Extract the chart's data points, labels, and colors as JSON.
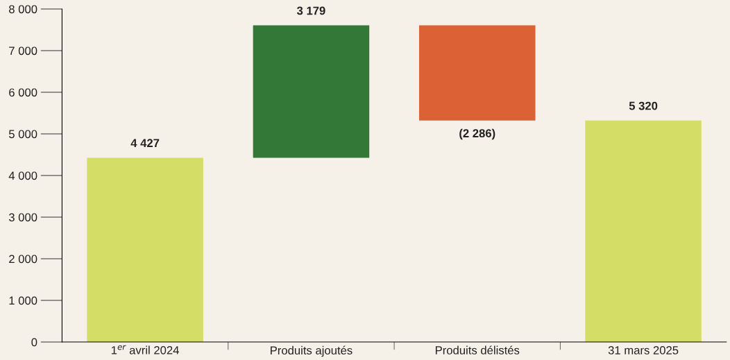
{
  "chart_data": {
    "type": "bar",
    "categories": [
      "1$^{er}$ avril 2024",
      "Produits ajoutés",
      "Produits délistés",
      "31 mars 2025"
    ],
    "values": [
      4427,
      3179,
      -2286,
      5320
    ],
    "base": [
      0,
      4427,
      7606,
      0
    ],
    "colors": [
      "#d4dd66",
      "#347838",
      "#dc6235",
      "#d4dd66"
    ],
    "value_labels": [
      "4 427",
      "3 179",
      "(2 286)",
      "5 320"
    ],
    "ylim": [
      0,
      8000
    ],
    "yticks": [
      {
        "value": 0,
        "label": "0"
      },
      {
        "value": 1000,
        "label": "1 000"
      },
      {
        "value": 2000,
        "label": "2 000"
      },
      {
        "value": 3000,
        "label": "3 000"
      },
      {
        "value": 4000,
        "label": "4 000"
      },
      {
        "value": 5000,
        "label": "5 000"
      },
      {
        "value": 6000,
        "label": "6 000"
      },
      {
        "value": 7000,
        "label": "7 000"
      },
      {
        "value": 8000,
        "label": "8 000"
      }
    ],
    "grid": false
  }
}
